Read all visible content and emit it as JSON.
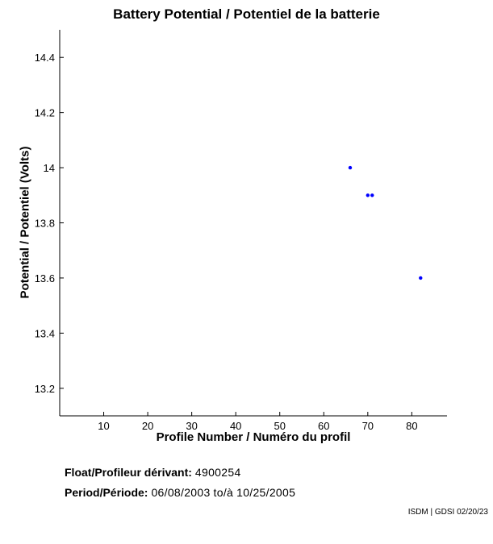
{
  "chart_data": {
    "type": "scatter",
    "title": "Battery Potential / Potentiel de la batterie",
    "xlabel": "Profile Number / Numéro du profil",
    "ylabel": "Potential / Potentiel (Volts)",
    "xlim": [
      0,
      88
    ],
    "ylim": [
      13.1,
      14.5
    ],
    "xticks": [
      10,
      20,
      30,
      40,
      50,
      60,
      70,
      80
    ],
    "yticks": [
      13.2,
      13.4,
      13.6,
      13.8,
      14.0,
      14.2,
      14.4
    ],
    "ytick_labels": [
      "13.2",
      "13.4",
      "13.6",
      "13.8",
      "14",
      "14.2",
      "14.4"
    ],
    "grid": false,
    "points": [
      {
        "x": 66,
        "y": 14.0
      },
      {
        "x": 70,
        "y": 13.9
      },
      {
        "x": 71,
        "y": 13.9
      },
      {
        "x": 82,
        "y": 13.6
      }
    ],
    "marker_color": "#0000ff"
  },
  "meta": {
    "float_label": "Float/Profileur dérivant:",
    "float_value": "4900254",
    "period_label": "Period/Période:",
    "period_start": "06/08/2003",
    "period_sep": "to/à",
    "period_end": "10/25/2005"
  },
  "credit": "ISDM | GDSI 02/20/23"
}
